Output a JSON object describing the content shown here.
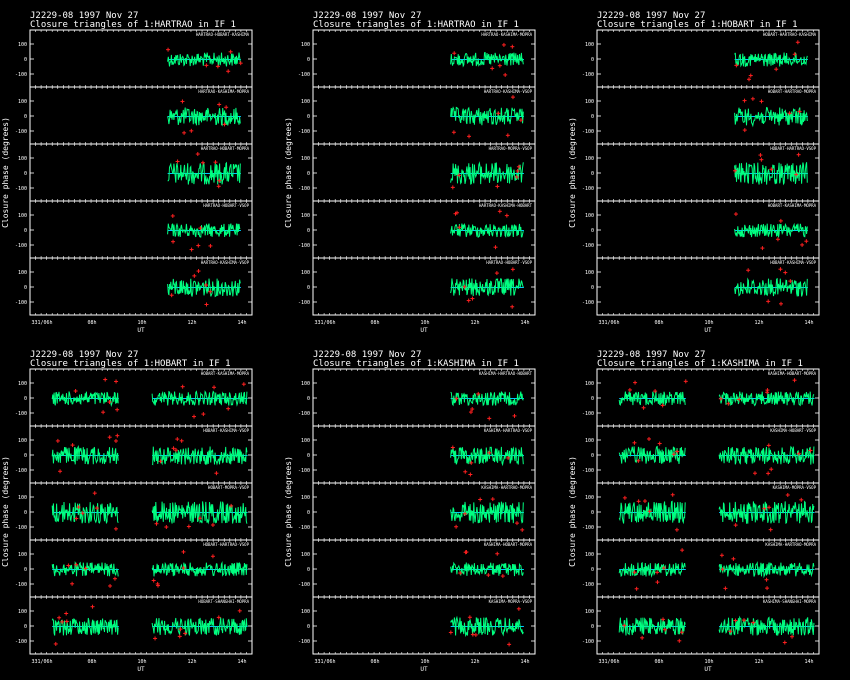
{
  "colors": {
    "background": "#000000",
    "axes": "#ffffff",
    "points": "#00ff80",
    "outliers": "#ff2020",
    "model": "#00c8ff"
  },
  "chart_data": [
    {
      "type": "scatter",
      "title": "J2229-08  1997 Nov 27",
      "subtitle": "Closure triangles of 1:HARTRAO in IF 1",
      "xlabel": "UT",
      "ylabel": "Closure phase  (degrees)",
      "x_ticks": [
        "331/06h",
        "08h",
        "10h",
        "12h",
        "14h"
      ],
      "y_ticks": [
        "100",
        "0",
        "-100"
      ],
      "triangle_labels": [
        "HARTRAO-HOBART-KASHIMA",
        "HARTRAO-KASHIMA-MOPRA",
        "HARTRAO-HOBART-MOPRA",
        "HARTRAO-HOBART-VSOP",
        "HARTRAO-KASHIMA-VSOP"
      ]
    },
    {
      "type": "scatter",
      "title": "J2229-08  1997 Nov 27",
      "subtitle": "Closure triangles of 1:HARTRAO in IF 1",
      "xlabel": "UT",
      "ylabel": "Closure phase  (degrees)",
      "x_ticks": [
        "331/06h",
        "08h",
        "10h",
        "12h",
        "14h"
      ],
      "y_ticks": [
        "100",
        "0",
        "-100"
      ],
      "triangle_labels": [
        "HARTRAO-KASHIMA-MOPRA",
        "HARTRAO-KASHIMA-VSOP",
        "HARTRAO-MOPRA-VSOP",
        "HARTRAO-KASHIMA-HOBART",
        "HARTRAO-HOBART-VSOP"
      ]
    },
    {
      "type": "scatter",
      "title": "J2229-08  1997 Nov 27",
      "subtitle": "Closure triangles of 1:HOBART in IF 1",
      "xlabel": "UT",
      "ylabel": "Closure phase  (degrees)",
      "x_ticks": [
        "331/06h",
        "08h",
        "10h",
        "12h",
        "14h"
      ],
      "y_ticks": [
        "100",
        "0",
        "-100"
      ],
      "triangle_labels": [
        "HOBART-HARTRAO-KASHIMA",
        "HOBART-HARTRAO-MOPRA",
        "HOBART-HARTRAO-VSOP",
        "HOBART-KASHIMA-MOPRA",
        "HOBART-KASHIMA-VSOP"
      ]
    },
    {
      "type": "scatter",
      "title": "J2229-08  1997 Nov 27",
      "subtitle": "Closure triangles of 1:HOBART in IF 1",
      "xlabel": "UT",
      "ylabel": "Closure phase  (degrees)",
      "x_ticks": [
        "331/06h",
        "08h",
        "10h",
        "12h",
        "14h"
      ],
      "y_ticks": [
        "100",
        "0",
        "-100"
      ],
      "triangle_labels": [
        "HOBART-KASHIMA-MOPRA",
        "HOBART-KASHIMA-VSOP",
        "HOBART-MOPRA-VSOP",
        "HOBART-HARTRAO-VSOP",
        "HOBART-SHANGHAI-MOPRA"
      ]
    },
    {
      "type": "scatter",
      "title": "J2229-08  1997 Nov 27",
      "subtitle": "Closure triangles of 1:KASHIMA in IF 1",
      "xlabel": "UT",
      "ylabel": "Closure phase  (degrees)",
      "x_ticks": [
        "331/06h",
        "08h",
        "10h",
        "12h",
        "14h"
      ],
      "y_ticks": [
        "100",
        "0",
        "-100"
      ],
      "triangle_labels": [
        "KASHIMA-HARTRAO-HOBART",
        "KASHIMA-HARTRAO-VSOP",
        "KASHIMA-HARTRAO-MOPRA",
        "KASHIMA-HOBART-MOPRA",
        "KASHIMA-MOPRA-VSOP"
      ]
    },
    {
      "type": "scatter",
      "title": "J2229-08  1997 Nov 27",
      "subtitle": "Closure triangles of 1:KASHIMA in IF 1",
      "xlabel": "UT",
      "ylabel": "Closure phase  (degrees)",
      "x_ticks": [
        "331/06h",
        "08h",
        "10h",
        "12h",
        "14h"
      ],
      "y_ticks": [
        "100",
        "0",
        "-100"
      ],
      "triangle_labels": [
        "KASHIMA-HOBART-MOPRA",
        "KASHIMA-HOBART-VSOP",
        "KASHIMA-MOPRA-VSOP",
        "KASHIMA-HARTRAO-MOPRA",
        "KASHIMA-SHANGHAI-MOPRA"
      ]
    }
  ]
}
